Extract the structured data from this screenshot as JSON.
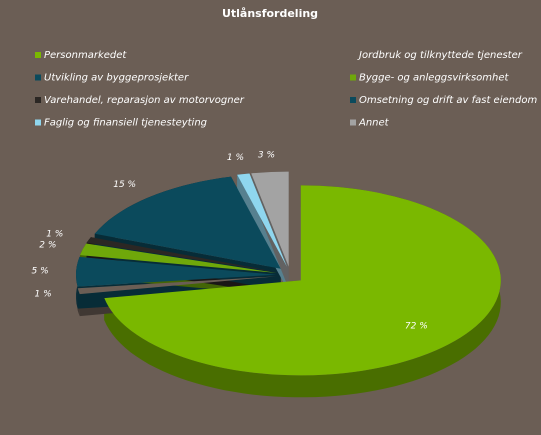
{
  "chart_data": {
    "type": "pie3d",
    "title": "Utlånsfordeling",
    "categories": [
      "Personmarkedet",
      "Jordbruk og tilknyttede tjenester",
      "Utvikling av byggeprosjekter",
      "Bygge- og anleggsvirksomhet",
      "Varehandel, reparasjon av motorvogner",
      "Omsetning og drift av fast eiendom",
      "Faglig og finansiell tjenesteyting",
      "Annet"
    ],
    "values": [
      72,
      1,
      5,
      2,
      1,
      15,
      1,
      3
    ],
    "value_labels": [
      "72 %",
      "1 %",
      "5 %",
      "2 %",
      "1 %",
      "15 %",
      "1 %",
      "3 %"
    ],
    "colors": [
      "#7ab800",
      "#6b5e55",
      "#0b4a5c",
      "#6fa80a",
      "#2b2724",
      "#0b4a5c",
      "#8fd6ee",
      "#a3a3a3"
    ]
  }
}
